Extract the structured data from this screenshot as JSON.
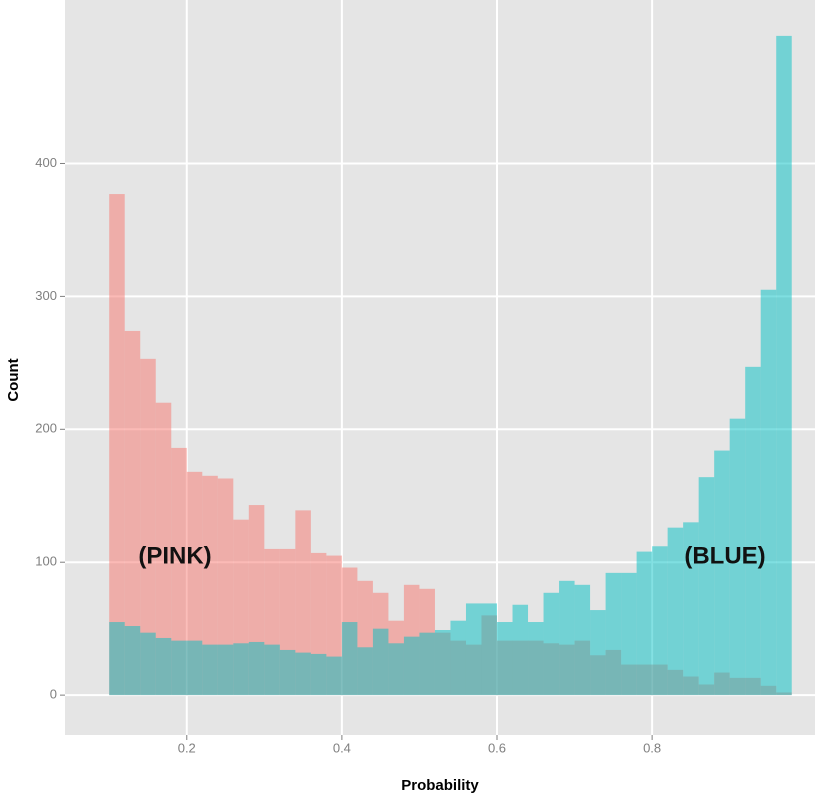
{
  "chart_data": {
    "type": "histogram",
    "xlabel": "Probability",
    "ylabel": "Count",
    "bins": [
      0.1,
      0.12,
      0.14,
      0.16,
      0.18,
      0.2,
      0.22,
      0.24,
      0.26,
      0.28,
      0.3,
      0.32,
      0.34,
      0.36,
      0.38,
      0.4,
      0.42,
      0.44,
      0.46,
      0.48,
      0.5,
      0.52,
      0.54,
      0.56,
      0.58,
      0.6,
      0.62,
      0.64,
      0.66,
      0.68,
      0.7,
      0.72,
      0.74,
      0.76,
      0.78,
      0.8,
      0.82,
      0.84,
      0.86,
      0.88,
      0.9,
      0.92,
      0.94,
      0.96,
      0.98
    ],
    "series": [
      {
        "color": "#f8766d",
        "values": [
          377,
          274,
          253,
          220,
          186,
          168,
          165,
          163,
          132,
          143,
          110,
          110,
          139,
          107,
          105,
          96,
          86,
          77,
          56,
          83,
          80,
          47,
          41,
          38,
          60,
          41,
          41,
          41,
          39,
          38,
          41,
          30,
          34,
          23,
          23,
          23,
          19,
          14,
          8,
          17,
          13,
          13,
          7,
          2
        ]
      },
      {
        "color": "#00bfc4",
        "values": [
          55,
          52,
          47,
          43,
          41,
          41,
          38,
          38,
          39,
          40,
          38,
          34,
          32,
          31,
          29,
          55,
          36,
          50,
          39,
          44,
          47,
          49,
          56,
          69,
          69,
          55,
          68,
          55,
          77,
          86,
          83,
          64,
          92,
          92,
          108,
          112,
          126,
          130,
          164,
          184,
          208,
          247,
          305,
          496
        ]
      }
    ],
    "annotations": [
      "(PINK)",
      "(BLUE)"
    ],
    "xlim": [
      0.043,
      1.01
    ],
    "ylim": [
      -30,
      523
    ],
    "xticks": [
      0.2,
      0.4,
      0.6,
      0.8
    ],
    "yticks": [
      0,
      100,
      200,
      300,
      400
    ],
    "grid": true
  }
}
